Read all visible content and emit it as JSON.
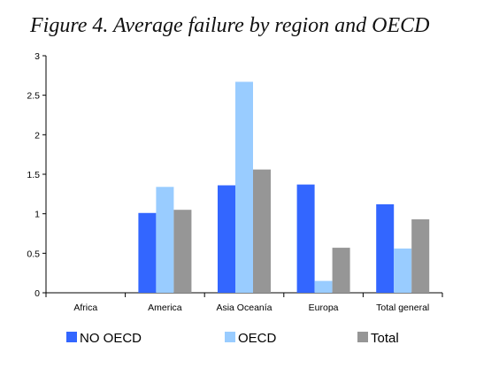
{
  "chart_data": {
    "type": "bar",
    "title": "Figure 4. Average failure by region and OECD",
    "categories": [
      "Africa",
      "America",
      "Asia Oceanía",
      "Europa",
      "Total general"
    ],
    "series": [
      {
        "name": "NO OECD",
        "color": "#3366ff",
        "values": [
          0,
          1.01,
          1.36,
          1.37,
          1.12
        ]
      },
      {
        "name": "OECD",
        "color": "#99ccff",
        "values": [
          0,
          1.34,
          2.67,
          0.15,
          0.56
        ]
      },
      {
        "name": "Total",
        "color": "#969696",
        "values": [
          0,
          1.05,
          1.56,
          0.57,
          0.93
        ]
      }
    ],
    "ylim": [
      0,
      3
    ],
    "yticks": [
      "0",
      "0.5",
      "1",
      "1.5",
      "2",
      "2.5",
      "3"
    ],
    "grid": false,
    "legend": "bottom"
  }
}
